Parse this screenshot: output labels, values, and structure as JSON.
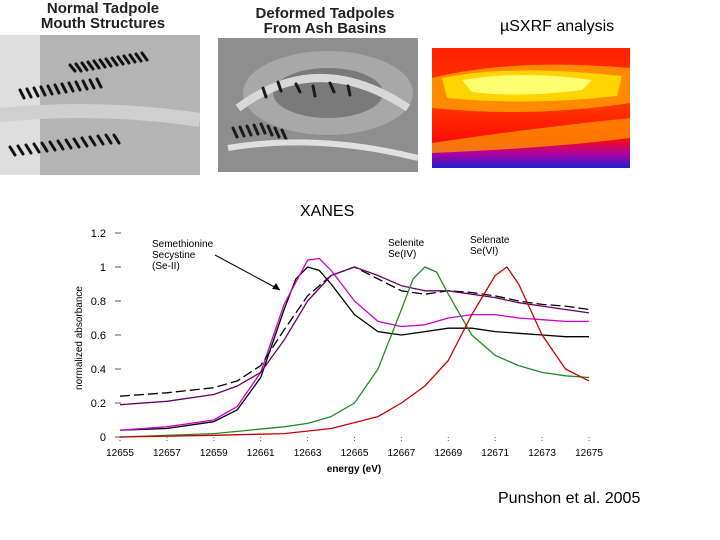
{
  "captions": {
    "normal": "Normal Tadpole Mouth Structures",
    "deformed": "Deformed Tadpoles From Ash Basins",
    "sxrf": "µSXRF analysis",
    "xanes": "XANES",
    "citation": "Punshon et al. 2005"
  },
  "images": {
    "normal": "grayscale-photo-normal-tadpole-mouthparts",
    "deformed": "grayscale-photo-deformed-tadpole-mouthparts",
    "sxrf": "false-color-sxrf-map"
  },
  "chart_data": {
    "type": "line",
    "title": "",
    "xlabel": "energy (eV)",
    "ylabel": "normalized absorbance",
    "xlim": [
      12655,
      12675
    ],
    "ylim": [
      0,
      1.2
    ],
    "x_ticks": [
      "12655",
      "12657",
      "12659",
      "12661",
      "12663",
      "12665",
      "12667",
      "12669",
      "12671",
      "12673",
      "12675"
    ],
    "y_ticks": [
      "0",
      "0.2",
      "0.4",
      "0.6",
      "0.8",
      "1",
      "1.2"
    ],
    "grid": false,
    "annotations": [
      {
        "text": [
          "Semethionine",
          "Secystine",
          "(Se-II)"
        ]
      },
      {
        "text": [
          "Selenite",
          "Se(IV)"
        ]
      },
      {
        "text": [
          "Selenate",
          "Se(VI)"
        ]
      }
    ],
    "series": [
      {
        "color": "#000000",
        "style": "solid",
        "points": [
          [
            12655,
            0.04
          ],
          [
            12657,
            0.05
          ],
          [
            12659,
            0.09
          ],
          [
            12660,
            0.16
          ],
          [
            12661,
            0.35
          ],
          [
            12662,
            0.75
          ],
          [
            12662.5,
            0.93
          ],
          [
            12663,
            1.0
          ],
          [
            12663.5,
            0.98
          ],
          [
            12664,
            0.9
          ],
          [
            12665,
            0.72
          ],
          [
            12666,
            0.62
          ],
          [
            12667,
            0.6
          ],
          [
            12668,
            0.62
          ],
          [
            12669,
            0.64
          ],
          [
            12670,
            0.64
          ],
          [
            12671,
            0.62
          ],
          [
            12672,
            0.61
          ],
          [
            12673,
            0.6
          ],
          [
            12674,
            0.59
          ],
          [
            12675,
            0.59
          ]
        ]
      },
      {
        "color": "#cc00cc",
        "style": "solid",
        "points": [
          [
            12655,
            0.04
          ],
          [
            12657,
            0.06
          ],
          [
            12659,
            0.1
          ],
          [
            12660,
            0.18
          ],
          [
            12661,
            0.38
          ],
          [
            12662,
            0.78
          ],
          [
            12663,
            1.04
          ],
          [
            12663.5,
            1.05
          ],
          [
            12664,
            0.98
          ],
          [
            12665,
            0.8
          ],
          [
            12666,
            0.68
          ],
          [
            12667,
            0.65
          ],
          [
            12668,
            0.66
          ],
          [
            12669,
            0.7
          ],
          [
            12670,
            0.72
          ],
          [
            12671,
            0.72
          ],
          [
            12672,
            0.7
          ],
          [
            12673,
            0.69
          ],
          [
            12674,
            0.68
          ],
          [
            12675,
            0.68
          ]
        ]
      },
      {
        "color": "#000000",
        "style": "dashed",
        "points": [
          [
            12655,
            0.24
          ],
          [
            12657,
            0.26
          ],
          [
            12659,
            0.29
          ],
          [
            12660,
            0.33
          ],
          [
            12661,
            0.42
          ],
          [
            12662,
            0.63
          ],
          [
            12663,
            0.83
          ],
          [
            12664,
            0.95
          ],
          [
            12665,
            1.0
          ],
          [
            12666,
            0.93
          ],
          [
            12667,
            0.86
          ],
          [
            12668,
            0.84
          ],
          [
            12669,
            0.86
          ],
          [
            12670,
            0.85
          ],
          [
            12671,
            0.83
          ],
          [
            12672,
            0.8
          ],
          [
            12673,
            0.78
          ],
          [
            12674,
            0.77
          ],
          [
            12675,
            0.75
          ]
        ]
      },
      {
        "color": "#660066",
        "style": "solid",
        "points": [
          [
            12655,
            0.19
          ],
          [
            12657,
            0.21
          ],
          [
            12659,
            0.25
          ],
          [
            12660,
            0.3
          ],
          [
            12661,
            0.38
          ],
          [
            12662,
            0.57
          ],
          [
            12663,
            0.8
          ],
          [
            12664,
            0.95
          ],
          [
            12665,
            1.0
          ],
          [
            12666,
            0.95
          ],
          [
            12667,
            0.89
          ],
          [
            12668,
            0.86
          ],
          [
            12669,
            0.86
          ],
          [
            12670,
            0.84
          ],
          [
            12671,
            0.82
          ],
          [
            12672,
            0.79
          ],
          [
            12673,
            0.77
          ],
          [
            12674,
            0.75
          ],
          [
            12675,
            0.73
          ]
        ]
      },
      {
        "color": "#228b22",
        "style": "solid",
        "points": [
          [
            12655,
            0.0
          ],
          [
            12659,
            0.02
          ],
          [
            12662,
            0.06
          ],
          [
            12663,
            0.08
          ],
          [
            12664,
            0.12
          ],
          [
            12665,
            0.2
          ],
          [
            12666,
            0.4
          ],
          [
            12667,
            0.75
          ],
          [
            12667.5,
            0.93
          ],
          [
            12668,
            1.0
          ],
          [
            12668.5,
            0.97
          ],
          [
            12669,
            0.84
          ],
          [
            12670,
            0.6
          ],
          [
            12671,
            0.48
          ],
          [
            12672,
            0.42
          ],
          [
            12673,
            0.38
          ],
          [
            12674,
            0.36
          ],
          [
            12675,
            0.35
          ]
        ]
      },
      {
        "color": "#cc0000",
        "style": "solid",
        "points": [
          [
            12655,
            0.0
          ],
          [
            12659,
            0.01
          ],
          [
            12662,
            0.02
          ],
          [
            12664,
            0.05
          ],
          [
            12666,
            0.12
          ],
          [
            12667,
            0.2
          ],
          [
            12668,
            0.3
          ],
          [
            12669,
            0.45
          ],
          [
            12670,
            0.72
          ],
          [
            12671,
            0.95
          ],
          [
            12671.5,
            1.0
          ],
          [
            12672,
            0.9
          ],
          [
            12673,
            0.6
          ],
          [
            12674,
            0.4
          ],
          [
            12675,
            0.33
          ]
        ]
      }
    ]
  }
}
